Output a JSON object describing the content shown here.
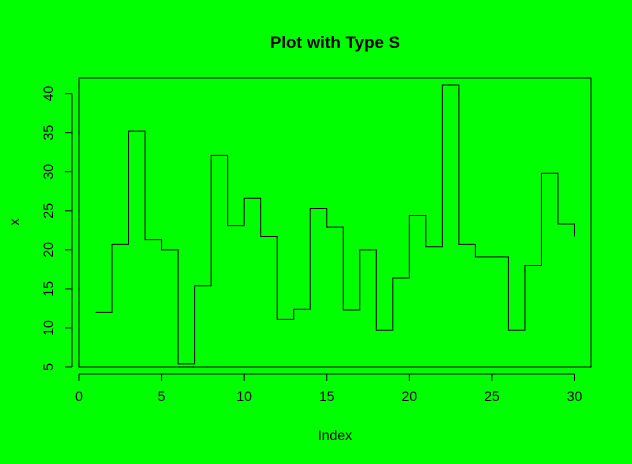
{
  "chart_data": {
    "type": "line",
    "plot_type": "s",
    "title": "Plot with Type S",
    "xlabel": "Index",
    "ylabel": "x",
    "x": [
      1,
      2,
      3,
      4,
      5,
      6,
      7,
      8,
      9,
      10,
      11,
      12,
      13,
      14,
      15,
      16,
      17,
      18,
      19,
      20,
      21,
      22,
      23,
      24,
      25,
      26,
      27,
      28,
      29,
      30
    ],
    "values": [
      12,
      20.7,
      35.2,
      21.3,
      20,
      5.4,
      15.4,
      32.1,
      23.1,
      26.6,
      21.7,
      11.1,
      12.4,
      25.3,
      22.9,
      12.3,
      20,
      9.7,
      16.4,
      24.4,
      20.4,
      41.1,
      20.7,
      19.1,
      19.1,
      9.7,
      18,
      29.8,
      23.3,
      21.7
    ],
    "xlim": [
      0,
      31
    ],
    "ylim": [
      5,
      42
    ],
    "xticks": [
      "0",
      "5",
      "10",
      "15",
      "20",
      "25",
      "30"
    ],
    "yticks": [
      "5",
      "10",
      "15",
      "20",
      "25",
      "30",
      "35",
      "40"
    ],
    "grid": false,
    "line_color": "#000000",
    "background": "#00ff00"
  }
}
